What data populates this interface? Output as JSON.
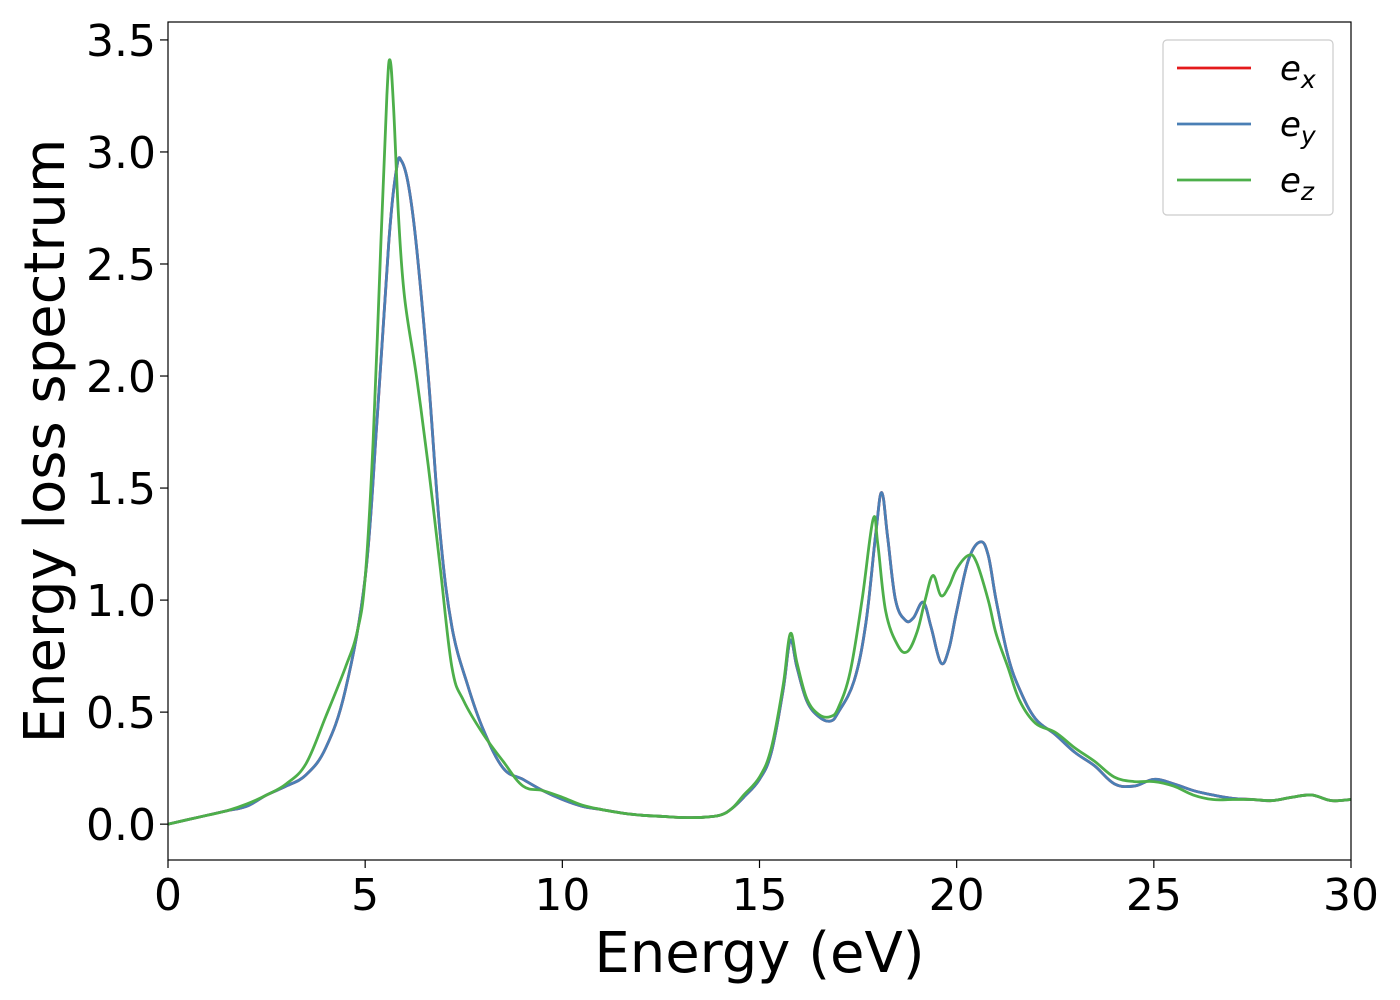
{
  "chart_data": {
    "type": "line",
    "title": "",
    "xlabel": "Energy (eV)",
    "ylabel": "Energy loss spectrum",
    "xlim": [
      0,
      30
    ],
    "ylim": [
      -0.16,
      3.58
    ],
    "xticks": [
      0,
      5,
      10,
      15,
      20,
      25,
      30
    ],
    "xtick_labels": [
      "0",
      "5",
      "10",
      "15",
      "20",
      "25",
      "30"
    ],
    "yticks": [
      0.0,
      0.5,
      1.0,
      1.5,
      2.0,
      2.5,
      3.0,
      3.5
    ],
    "ytick_labels": [
      "0.0",
      "0.5",
      "1.0",
      "1.5",
      "2.0",
      "2.5",
      "3.0",
      "3.5"
    ],
    "grid": false,
    "legend_position": "top-right",
    "series": [
      {
        "name": "e",
        "subscript": "x",
        "color": "#e41a1c",
        "points": [
          [
            0,
            0
          ],
          [
            0.5,
            0.02
          ],
          [
            1,
            0.04
          ],
          [
            1.5,
            0.06
          ],
          [
            2,
            0.08
          ],
          [
            2.5,
            0.13
          ],
          [
            3,
            0.17
          ],
          [
            3.5,
            0.22
          ],
          [
            4,
            0.34
          ],
          [
            4.5,
            0.6
          ],
          [
            5,
            1.1
          ],
          [
            5.3,
            1.8
          ],
          [
            5.6,
            2.6
          ],
          [
            5.8,
            2.93
          ],
          [
            5.92,
            2.96
          ],
          [
            6.1,
            2.85
          ],
          [
            6.3,
            2.58
          ],
          [
            6.6,
            2.0
          ],
          [
            6.9,
            1.3
          ],
          [
            7.2,
            0.88
          ],
          [
            7.6,
            0.62
          ],
          [
            8,
            0.42
          ],
          [
            8.5,
            0.25
          ],
          [
            9,
            0.2
          ],
          [
            9.5,
            0.15
          ],
          [
            10,
            0.11
          ],
          [
            10.5,
            0.08
          ],
          [
            11,
            0.065
          ],
          [
            11.5,
            0.05
          ],
          [
            12,
            0.04
          ],
          [
            12.5,
            0.035
          ],
          [
            13,
            0.03
          ],
          [
            13.5,
            0.03
          ],
          [
            14,
            0.04
          ],
          [
            14.3,
            0.07
          ],
          [
            14.6,
            0.12
          ],
          [
            15,
            0.2
          ],
          [
            15.3,
            0.32
          ],
          [
            15.6,
            0.6
          ],
          [
            15.78,
            0.82
          ],
          [
            15.95,
            0.7
          ],
          [
            16.2,
            0.55
          ],
          [
            16.5,
            0.48
          ],
          [
            16.8,
            0.46
          ],
          [
            17,
            0.5
          ],
          [
            17.4,
            0.64
          ],
          [
            17.7,
            0.9
          ],
          [
            17.95,
            1.3
          ],
          [
            18.1,
            1.48
          ],
          [
            18.25,
            1.28
          ],
          [
            18.45,
            1.0
          ],
          [
            18.7,
            0.91
          ],
          [
            18.9,
            0.92
          ],
          [
            19.15,
            0.99
          ],
          [
            19.35,
            0.88
          ],
          [
            19.6,
            0.72
          ],
          [
            19.8,
            0.78
          ],
          [
            20,
            0.95
          ],
          [
            20.3,
            1.18
          ],
          [
            20.6,
            1.26
          ],
          [
            20.8,
            1.2
          ],
          [
            21,
            1.0
          ],
          [
            21.3,
            0.75
          ],
          [
            21.6,
            0.6
          ],
          [
            22,
            0.47
          ],
          [
            22.5,
            0.4
          ],
          [
            23,
            0.32
          ],
          [
            23.5,
            0.26
          ],
          [
            24,
            0.18
          ],
          [
            24.5,
            0.17
          ],
          [
            25,
            0.2
          ],
          [
            25.5,
            0.18
          ],
          [
            26,
            0.15
          ],
          [
            26.5,
            0.13
          ],
          [
            27,
            0.115
          ],
          [
            27.5,
            0.11
          ],
          [
            28,
            0.105
          ],
          [
            28.5,
            0.12
          ],
          [
            29,
            0.13
          ],
          [
            29.5,
            0.105
          ],
          [
            30,
            0.11
          ]
        ]
      },
      {
        "name": "e",
        "subscript": "y",
        "color": "#4a7fb5",
        "points": [
          [
            0,
            0
          ],
          [
            0.5,
            0.02
          ],
          [
            1,
            0.04
          ],
          [
            1.5,
            0.06
          ],
          [
            2,
            0.08
          ],
          [
            2.5,
            0.13
          ],
          [
            3,
            0.17
          ],
          [
            3.5,
            0.22
          ],
          [
            4,
            0.34
          ],
          [
            4.5,
            0.6
          ],
          [
            5,
            1.1
          ],
          [
            5.3,
            1.8
          ],
          [
            5.6,
            2.6
          ],
          [
            5.8,
            2.93
          ],
          [
            5.92,
            2.96
          ],
          [
            6.1,
            2.85
          ],
          [
            6.3,
            2.58
          ],
          [
            6.6,
            2.0
          ],
          [
            6.9,
            1.3
          ],
          [
            7.2,
            0.88
          ],
          [
            7.6,
            0.62
          ],
          [
            8,
            0.42
          ],
          [
            8.5,
            0.25
          ],
          [
            9,
            0.2
          ],
          [
            9.5,
            0.15
          ],
          [
            10,
            0.11
          ],
          [
            10.5,
            0.08
          ],
          [
            11,
            0.065
          ],
          [
            11.5,
            0.05
          ],
          [
            12,
            0.04
          ],
          [
            12.5,
            0.035
          ],
          [
            13,
            0.03
          ],
          [
            13.5,
            0.03
          ],
          [
            14,
            0.04
          ],
          [
            14.3,
            0.07
          ],
          [
            14.6,
            0.12
          ],
          [
            15,
            0.2
          ],
          [
            15.3,
            0.32
          ],
          [
            15.6,
            0.6
          ],
          [
            15.78,
            0.82
          ],
          [
            15.95,
            0.7
          ],
          [
            16.2,
            0.55
          ],
          [
            16.5,
            0.48
          ],
          [
            16.8,
            0.46
          ],
          [
            17,
            0.5
          ],
          [
            17.4,
            0.64
          ],
          [
            17.7,
            0.9
          ],
          [
            17.95,
            1.3
          ],
          [
            18.1,
            1.48
          ],
          [
            18.25,
            1.28
          ],
          [
            18.45,
            1.0
          ],
          [
            18.7,
            0.91
          ],
          [
            18.9,
            0.92
          ],
          [
            19.15,
            0.99
          ],
          [
            19.35,
            0.88
          ],
          [
            19.6,
            0.72
          ],
          [
            19.8,
            0.78
          ],
          [
            20,
            0.95
          ],
          [
            20.3,
            1.18
          ],
          [
            20.6,
            1.26
          ],
          [
            20.8,
            1.2
          ],
          [
            21,
            1.0
          ],
          [
            21.3,
            0.75
          ],
          [
            21.6,
            0.6
          ],
          [
            22,
            0.47
          ],
          [
            22.5,
            0.4
          ],
          [
            23,
            0.32
          ],
          [
            23.5,
            0.26
          ],
          [
            24,
            0.18
          ],
          [
            24.5,
            0.17
          ],
          [
            25,
            0.2
          ],
          [
            25.5,
            0.18
          ],
          [
            26,
            0.15
          ],
          [
            26.5,
            0.13
          ],
          [
            27,
            0.115
          ],
          [
            27.5,
            0.11
          ],
          [
            28,
            0.105
          ],
          [
            28.5,
            0.12
          ],
          [
            29,
            0.13
          ],
          [
            29.5,
            0.105
          ],
          [
            30,
            0.11
          ]
        ]
      },
      {
        "name": "e",
        "subscript": "z",
        "color": "#4daf4a",
        "points": [
          [
            0,
            0
          ],
          [
            0.5,
            0.02
          ],
          [
            1,
            0.04
          ],
          [
            1.5,
            0.06
          ],
          [
            2,
            0.09
          ],
          [
            2.5,
            0.13
          ],
          [
            3,
            0.18
          ],
          [
            3.5,
            0.27
          ],
          [
            4,
            0.48
          ],
          [
            4.5,
            0.7
          ],
          [
            4.8,
            0.86
          ],
          [
            5,
            1.1
          ],
          [
            5.2,
            1.7
          ],
          [
            5.4,
            2.6
          ],
          [
            5.55,
            3.25
          ],
          [
            5.63,
            3.41
          ],
          [
            5.72,
            3.2
          ],
          [
            5.85,
            2.7
          ],
          [
            6,
            2.35
          ],
          [
            6.3,
            2.0
          ],
          [
            6.6,
            1.6
          ],
          [
            6.9,
            1.15
          ],
          [
            7.2,
            0.7
          ],
          [
            7.5,
            0.55
          ],
          [
            8,
            0.4
          ],
          [
            8.5,
            0.28
          ],
          [
            9,
            0.17
          ],
          [
            9.5,
            0.15
          ],
          [
            10,
            0.12
          ],
          [
            10.5,
            0.085
          ],
          [
            11,
            0.065
          ],
          [
            11.5,
            0.05
          ],
          [
            12,
            0.04
          ],
          [
            12.5,
            0.035
          ],
          [
            13,
            0.03
          ],
          [
            13.5,
            0.03
          ],
          [
            14,
            0.04
          ],
          [
            14.3,
            0.07
          ],
          [
            14.6,
            0.13
          ],
          [
            15,
            0.21
          ],
          [
            15.3,
            0.34
          ],
          [
            15.6,
            0.62
          ],
          [
            15.78,
            0.85
          ],
          [
            15.95,
            0.72
          ],
          [
            16.2,
            0.56
          ],
          [
            16.5,
            0.49
          ],
          [
            16.8,
            0.48
          ],
          [
            17,
            0.52
          ],
          [
            17.3,
            0.68
          ],
          [
            17.6,
            1.0
          ],
          [
            17.88,
            1.36
          ],
          [
            18,
            1.25
          ],
          [
            18.2,
            0.95
          ],
          [
            18.5,
            0.8
          ],
          [
            18.75,
            0.77
          ],
          [
            19,
            0.86
          ],
          [
            19.2,
            1.0
          ],
          [
            19.4,
            1.11
          ],
          [
            19.6,
            1.02
          ],
          [
            19.8,
            1.06
          ],
          [
            20,
            1.14
          ],
          [
            20.3,
            1.2
          ],
          [
            20.5,
            1.17
          ],
          [
            20.8,
            1.0
          ],
          [
            21,
            0.85
          ],
          [
            21.3,
            0.7
          ],
          [
            21.6,
            0.55
          ],
          [
            22,
            0.45
          ],
          [
            22.5,
            0.41
          ],
          [
            23,
            0.34
          ],
          [
            23.5,
            0.28
          ],
          [
            24,
            0.21
          ],
          [
            24.5,
            0.19
          ],
          [
            25,
            0.19
          ],
          [
            25.5,
            0.17
          ],
          [
            26,
            0.13
          ],
          [
            26.5,
            0.11
          ],
          [
            27,
            0.11
          ],
          [
            27.5,
            0.11
          ],
          [
            28,
            0.105
          ],
          [
            28.5,
            0.12
          ],
          [
            29,
            0.13
          ],
          [
            29.5,
            0.105
          ],
          [
            30,
            0.11
          ]
        ]
      }
    ]
  }
}
